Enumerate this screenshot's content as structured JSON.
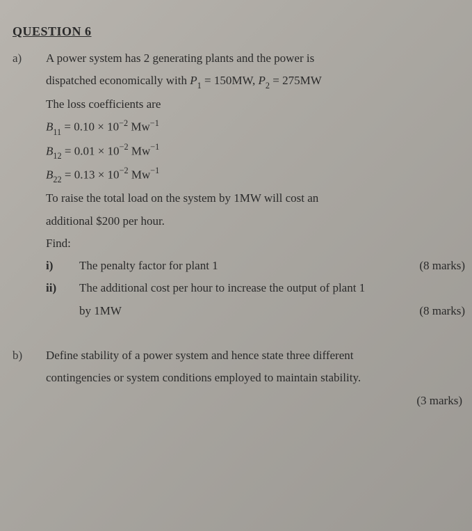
{
  "colors": {
    "background_from": "#b8b4ae",
    "background_mid": "#aba8a2",
    "background_to": "#9c9994",
    "text": "#2a2a2a"
  },
  "typography": {
    "family": "Times New Roman",
    "body_fontsize_pt": 13,
    "heading_fontsize_pt": 14,
    "line_height": 1.9
  },
  "heading": "QUESTION 6",
  "parts": {
    "a": {
      "label": "a)",
      "intro1": "A  power  system has  2  generating  plants  and  the  power  is",
      "intro2_prefix": "dispatched  economically  with  ",
      "p1_sym": "P",
      "p1_sub": "1",
      "eq_val1": " = 150MW,   ",
      "p2_sym": "P",
      "p2_sub": "2",
      "eq_val2": " = 275MW",
      "loss_line": "The loss coefficients are",
      "B11": {
        "sym": "B",
        "sub": "11",
        "val": " = 0.10 × 10",
        "exp": "−2",
        "unit_a": " Mw",
        "unit_exp": "−1"
      },
      "B12": {
        "sym": "B",
        "sub": "12",
        "val": " = 0.01 × 10",
        "exp": "−2",
        "unit_a": " Mw",
        "unit_exp": "−1"
      },
      "B22": {
        "sym": "B",
        "sub": "22",
        "val": " = 0.13 × 10",
        "exp": "−2",
        "unit_a": " Mw",
        "unit_exp": "−1"
      },
      "raise_line1": "To  raise  the total  load  on  the  system  by  1MW  will  cost  an",
      "raise_line2": "additional  $200 per  hour.",
      "find": "Find:",
      "i": {
        "roman": "i)",
        "text": "The  penalty  factor for   plant 1",
        "marks": "(8  marks)"
      },
      "ii": {
        "roman": "ii)",
        "line1": "The  additional cost  per  hour  to  increase  the  output  of plant 1",
        "line2": "by   1MW",
        "marks": "(8  marks)"
      }
    },
    "b": {
      "label": "b)",
      "line1": "Define  stability  of  a power  system  and hence state three  different",
      "line2": "contingencies or  system  conditions  employed  to  maintain  stability.",
      "marks": "(3  marks)"
    }
  }
}
